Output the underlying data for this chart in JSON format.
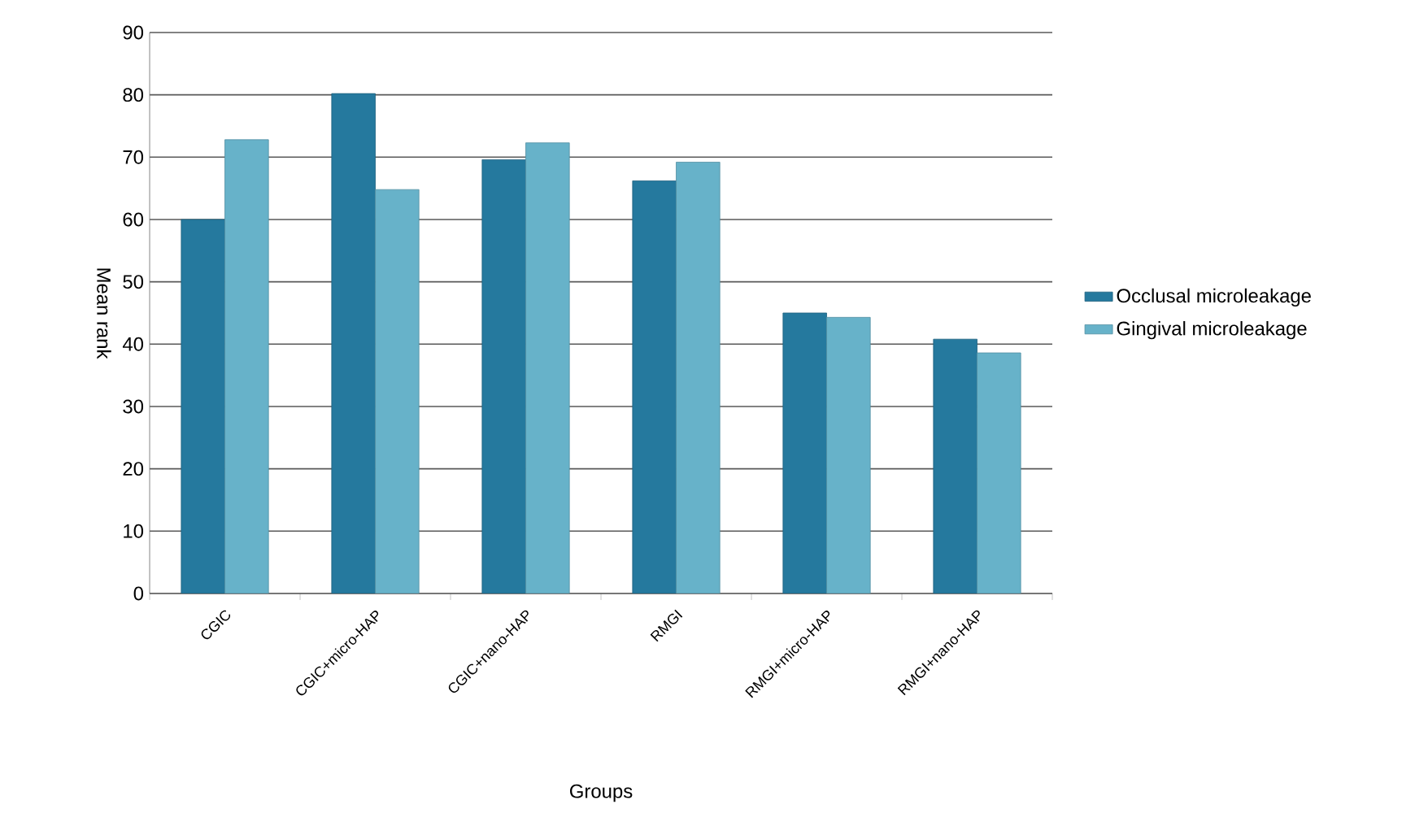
{
  "chart_data": {
    "type": "bar",
    "xlabel": "Groups",
    "ylabel": "Mean rank",
    "categories": [
      "CGIC",
      "CGIC+micro-HAP",
      "CGIC+nano-HAP",
      "RMGI",
      "RMGI+micro-HAP",
      "RMGI+nano-HAP"
    ],
    "series": [
      {
        "name": "Occlusal microleakage",
        "color": "#25799e",
        "values": [
          60,
          80.2,
          69.6,
          66.2,
          45,
          40.8
        ]
      },
      {
        "name": "Gingival microleakage",
        "color": "#67b2c9",
        "values": [
          72.8,
          64.8,
          72.3,
          69.2,
          44.3,
          38.6
        ]
      }
    ],
    "ylim": [
      0,
      90
    ],
    "yticks": [
      0,
      10,
      20,
      30,
      40,
      50,
      60,
      70,
      80,
      90
    ],
    "grid": "y",
    "legend": "right"
  }
}
